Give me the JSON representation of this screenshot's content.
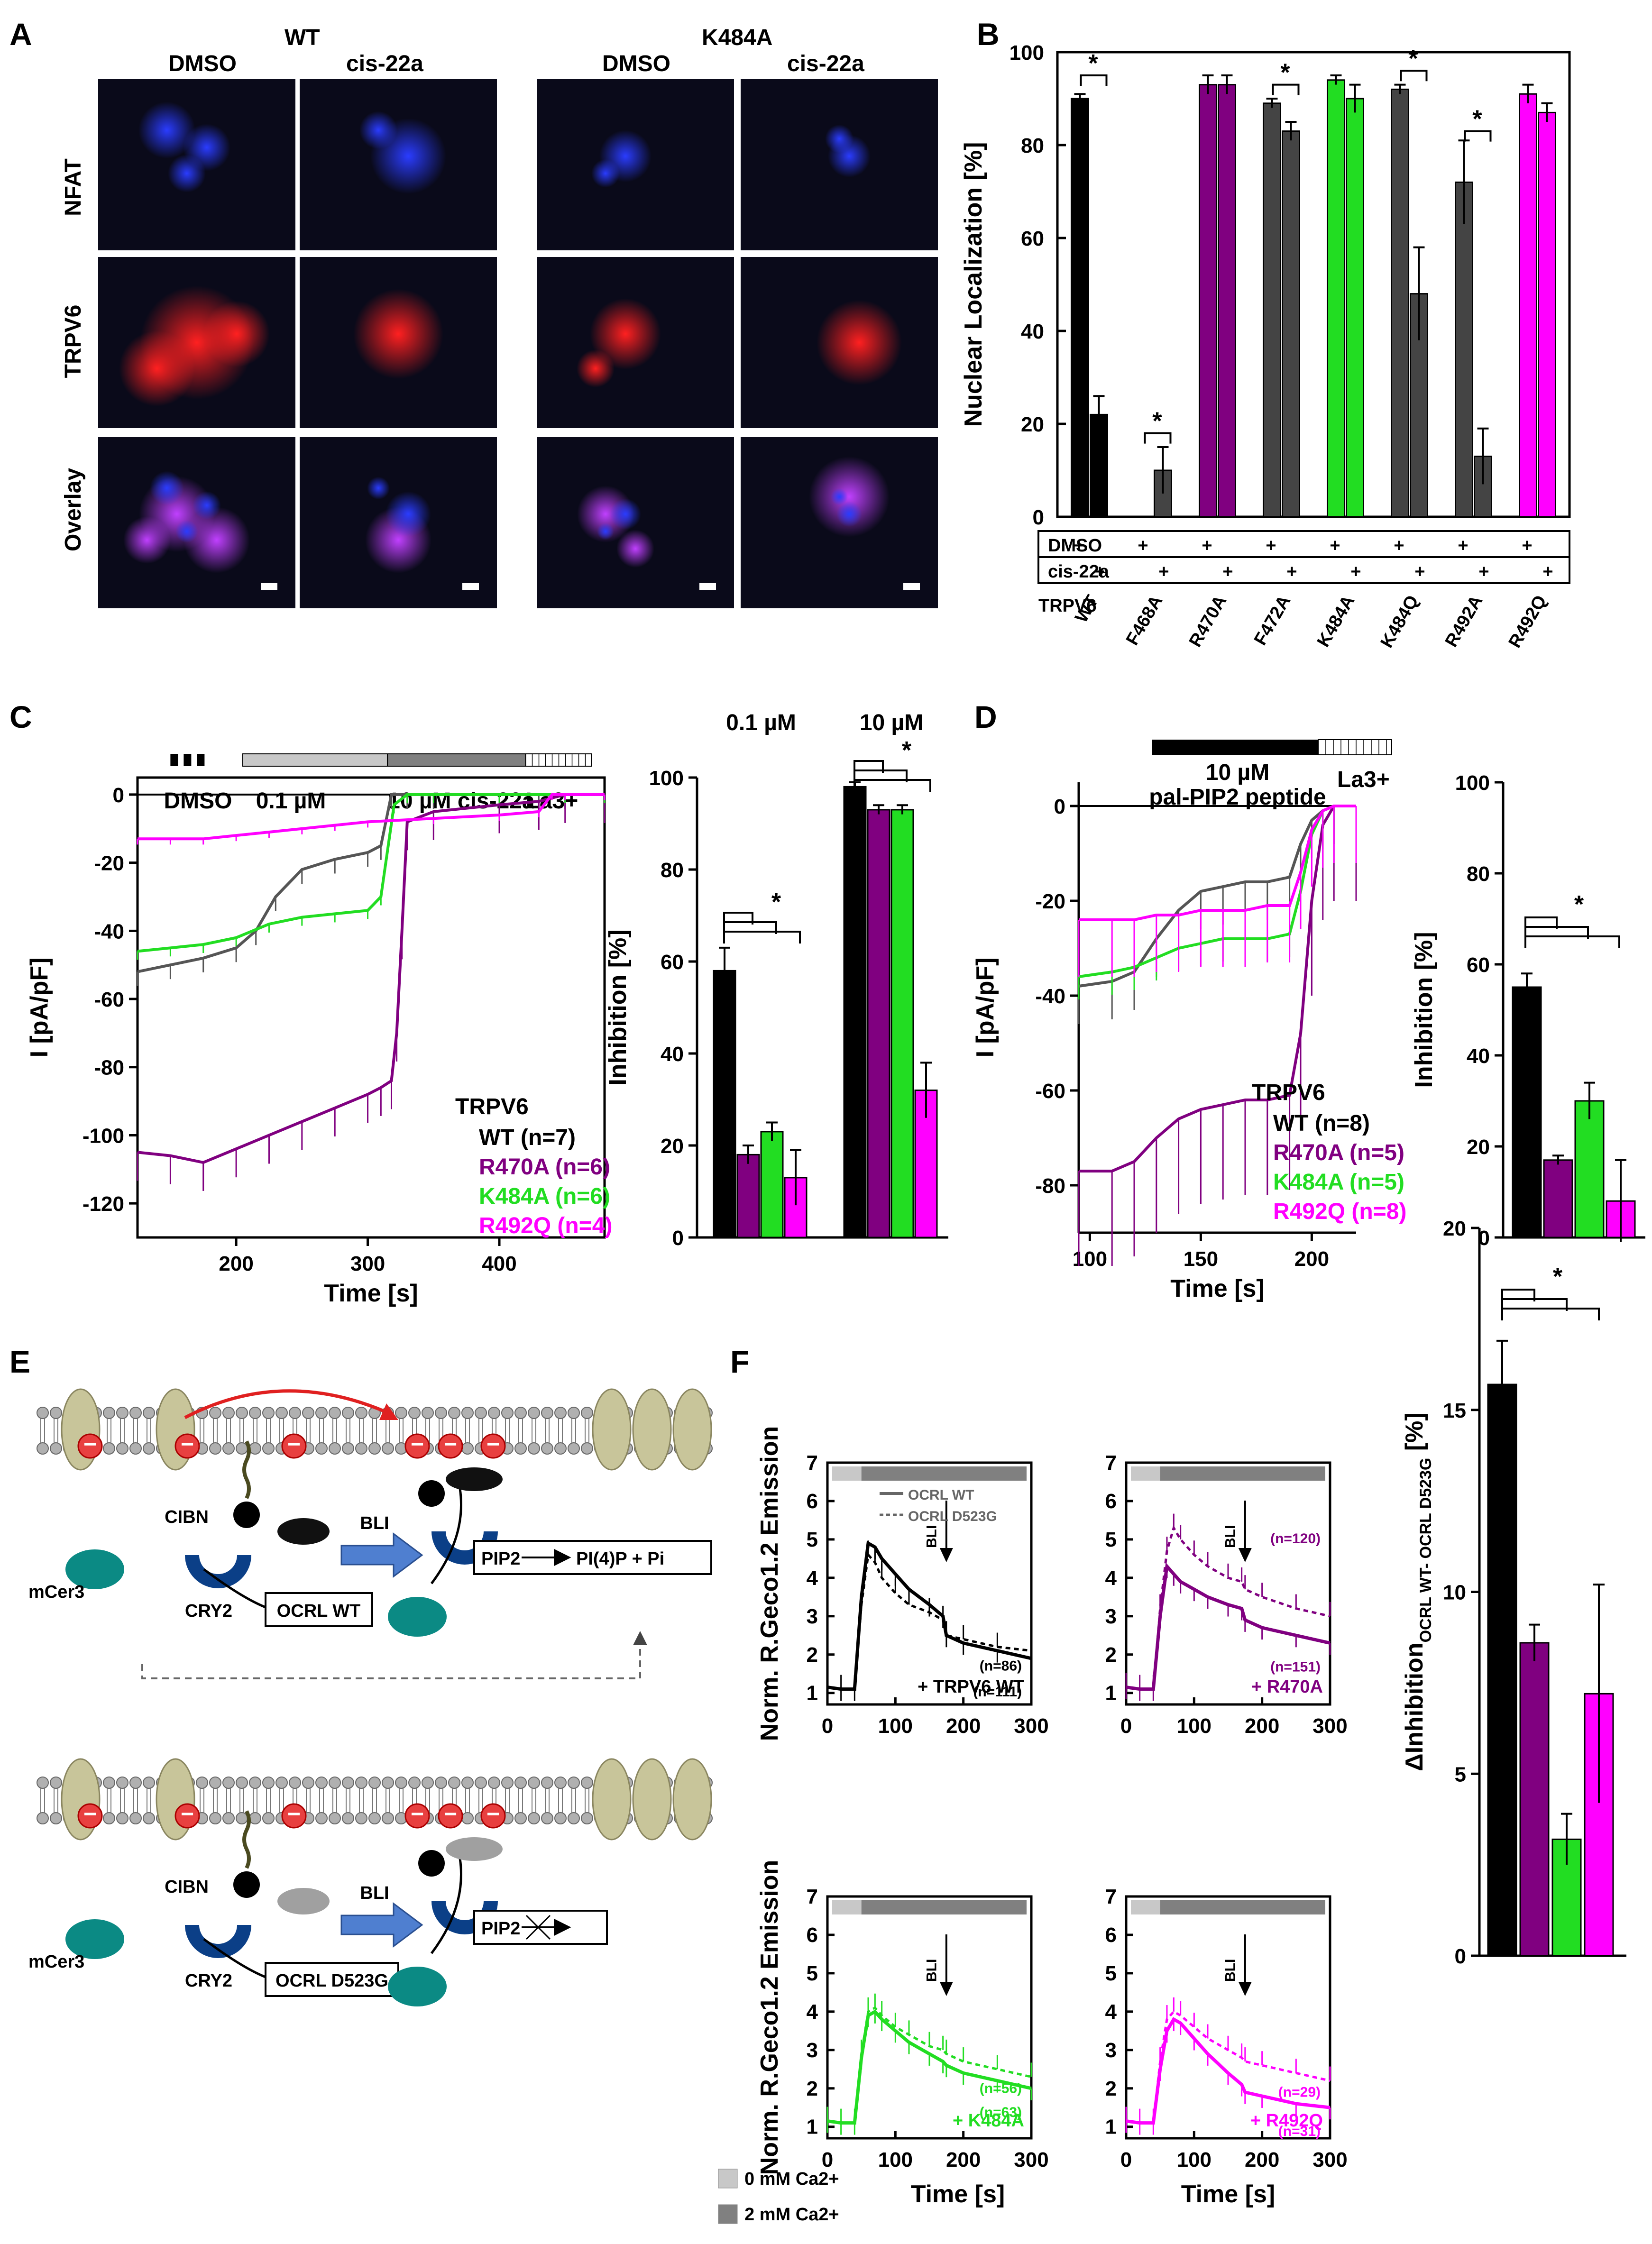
{
  "colors": {
    "wt": "#000000",
    "wt_trace": "#555555",
    "r470a": "#800080",
    "k484a": "#22dd22",
    "r492q": "#ff00ff",
    "grey": "#444444"
  },
  "panelA": {
    "panel_label": "A",
    "group_wt": "WT",
    "group_mut": "K484A",
    "col_dmso": "DMSO",
    "col_cis": "cis-22a",
    "rows": [
      "NFAT",
      "TRPV6",
      "Overlay"
    ]
  },
  "chart_data": [
    {
      "id": "B",
      "type": "bar",
      "panel_label": "B",
      "ylabel": "Nuclear Localization [%]",
      "ylim": [
        0,
        100
      ],
      "yticks": [
        0,
        20,
        40,
        60,
        80,
        100
      ],
      "row_dmso": "DMSO",
      "row_cis": "cis-22a",
      "row_trpv6": "TRPV6",
      "plus": "+",
      "significance": "*",
      "categories": [
        "WT",
        "F468A",
        "R470A",
        "F472A",
        "K484A",
        "K484Q",
        "R492A",
        "R492Q"
      ],
      "series": [
        {
          "name": "DMSO",
          "values": [
            90,
            0,
            93,
            89,
            94,
            92,
            72,
            91
          ],
          "errors": [
            1,
            0,
            2,
            1,
            1,
            1,
            9,
            2
          ]
        },
        {
          "name": "cis-22a",
          "values": [
            22,
            10,
            93,
            83,
            90,
            48,
            13,
            87
          ],
          "errors": [
            4,
            5,
            2,
            2,
            3,
            10,
            6,
            2
          ]
        }
      ],
      "bar_colors": [
        "#000000",
        "#444444",
        "#800080",
        "#444444",
        "#22dd22",
        "#444444",
        "#444444",
        "#ff00ff"
      ]
    },
    {
      "id": "C-left",
      "type": "line",
      "panel_label": "C",
      "xlabel": "Time [s]",
      "ylabel": "I [pA/pF]",
      "xlim": [
        125,
        480
      ],
      "ylim": [
        -130,
        5
      ],
      "xticks": [
        200,
        300,
        400
      ],
      "yticks": [
        0,
        -20,
        -40,
        -60,
        -80,
        -100,
        -120
      ],
      "bar_labels": {
        "dmso": "DMSO",
        "low": "0.1 µM",
        "high": "10 µM cis-22a",
        "la": "La3+"
      },
      "legend_title": "TRPV6",
      "series": [
        {
          "name": "WT (n=7)",
          "x": [
            125,
            150,
            175,
            200,
            215,
            230,
            250,
            275,
            300,
            310,
            318,
            330,
            350,
            400,
            430,
            450,
            480
          ],
          "y": [
            -52,
            -50,
            -48,
            -45,
            -40,
            -30,
            -22,
            -19,
            -17,
            -15,
            0,
            0,
            0,
            0,
            0,
            0,
            0
          ]
        },
        {
          "name": "R470A (n=6)",
          "x": [
            125,
            150,
            175,
            200,
            225,
            250,
            275,
            300,
            310,
            318,
            322,
            326,
            330,
            350,
            400,
            430,
            450,
            480
          ],
          "y": [
            -105,
            -106,
            -108,
            -104,
            -100,
            -96,
            -92,
            -88,
            -86,
            -84,
            -70,
            -40,
            -8,
            -5,
            -3,
            -2,
            0,
            0
          ]
        },
        {
          "name": "K484A (n=6)",
          "x": [
            125,
            150,
            175,
            200,
            225,
            250,
            275,
            300,
            310,
            320,
            330,
            350,
            400,
            450,
            480
          ],
          "y": [
            -46,
            -45,
            -44,
            -42,
            -38,
            -36,
            -35,
            -34,
            -30,
            -3,
            0,
            0,
            0,
            0,
            0
          ]
        },
        {
          "name": "R492Q (n=4)",
          "x": [
            125,
            150,
            175,
            200,
            225,
            250,
            275,
            300,
            350,
            400,
            430,
            440,
            450,
            480
          ],
          "y": [
            -13,
            -13,
            -13,
            -12,
            -11,
            -10,
            -9,
            -8,
            -7,
            -6,
            -5,
            0,
            0,
            0
          ]
        }
      ]
    },
    {
      "id": "C-right",
      "type": "bar",
      "ylabel": "Inhibition [%]",
      "ylim": [
        0,
        100
      ],
      "yticks": [
        0,
        20,
        40,
        60,
        80,
        100
      ],
      "groups": [
        "0.1 µM",
        "10 µM"
      ],
      "significance": "*",
      "series": [
        {
          "name": "WT",
          "values": [
            58,
            98
          ],
          "errors": [
            5,
            1
          ]
        },
        {
          "name": "R470A",
          "values": [
            18,
            93
          ],
          "errors": [
            2,
            1
          ]
        },
        {
          "name": "K484A",
          "values": [
            23,
            93
          ],
          "errors": [
            2,
            1
          ]
        },
        {
          "name": "R492Q",
          "values": [
            13,
            32
          ],
          "errors": [
            6,
            6
          ]
        }
      ]
    },
    {
      "id": "D-left",
      "type": "line",
      "panel_label": "D",
      "xlabel": "Time [s]",
      "ylabel": "I [pA/pF]",
      "xlim": [
        95,
        220
      ],
      "ylim": [
        -90,
        5
      ],
      "xticks": [
        100,
        150,
        200
      ],
      "yticks": [
        0,
        -20,
        -40,
        -60,
        -80
      ],
      "bar_labels": {
        "peptide_1": "10 µM",
        "peptide_2": "pal-PIP2 peptide",
        "la": "La3+"
      },
      "legend_title": "TRPV6",
      "series": [
        {
          "name": "WT (n=8)",
          "x": [
            95,
            110,
            120,
            130,
            140,
            150,
            160,
            170,
            180,
            190,
            195,
            200,
            205,
            210,
            220
          ],
          "y": [
            -38,
            -37,
            -35,
            -28,
            -22,
            -18,
            -17,
            -16,
            -16,
            -15,
            -8,
            -3,
            -1,
            0,
            0
          ]
        },
        {
          "name": "R470A (n=5)",
          "x": [
            95,
            110,
            120,
            130,
            140,
            150,
            160,
            170,
            180,
            190,
            195,
            200,
            205,
            210,
            220
          ],
          "y": [
            -77,
            -77,
            -75,
            -70,
            -66,
            -64,
            -63,
            -62,
            -62,
            -61,
            -48,
            -20,
            -4,
            0,
            0
          ]
        },
        {
          "name": "K484A (n=5)",
          "x": [
            95,
            110,
            120,
            130,
            140,
            150,
            160,
            170,
            180,
            190,
            195,
            200,
            205,
            210,
            220
          ],
          "y": [
            -36,
            -35,
            -34,
            -32,
            -30,
            -29,
            -28,
            -28,
            -28,
            -27,
            -18,
            -6,
            -1,
            0,
            0
          ]
        },
        {
          "name": "R492Q (n=8)",
          "x": [
            95,
            110,
            120,
            130,
            140,
            150,
            160,
            170,
            180,
            190,
            195,
            200,
            205,
            210,
            220
          ],
          "y": [
            -24,
            -24,
            -24,
            -23,
            -23,
            -22,
            -22,
            -22,
            -21,
            -21,
            -14,
            -5,
            -1,
            0,
            0
          ]
        }
      ]
    },
    {
      "id": "D-right",
      "type": "bar",
      "ylabel": "Inhibition [%]",
      "ylim": [
        0,
        100
      ],
      "yticks": [
        0,
        20,
        40,
        60,
        80,
        100
      ],
      "significance": "*",
      "series": [
        {
          "name": "WT",
          "values": [
            55
          ],
          "errors": [
            3
          ]
        },
        {
          "name": "R470A",
          "values": [
            17
          ],
          "errors": [
            1
          ]
        },
        {
          "name": "K484A",
          "values": [
            30
          ],
          "errors": [
            4
          ]
        },
        {
          "name": "R492Q",
          "values": [
            8
          ],
          "errors": [
            9
          ]
        }
      ]
    },
    {
      "id": "F-traces",
      "type": "line",
      "panel_label": "F",
      "xlabel": "Time [s]",
      "ylabel": "Norm. R.Geco1.2 Emission",
      "xlim": [
        0,
        300
      ],
      "ylim": [
        0.7,
        7
      ],
      "xticks": [
        0,
        100,
        200,
        300
      ],
      "yticks": [
        1,
        2,
        3,
        4,
        5,
        6,
        7
      ],
      "legend": [
        "OCRL WT",
        "OCRL D523G"
      ],
      "arrow_label": "BLI",
      "ca_legend": [
        "0 mM Ca2+",
        "2 mM Ca2+"
      ],
      "panels": [
        {
          "tag": "+ TRPV6 WT",
          "n_wt": "(n=111)",
          "n_mut": "(n=86)",
          "x": [
            0,
            20,
            40,
            50,
            60,
            70,
            80,
            100,
            120,
            150,
            170,
            175,
            200,
            250,
            300
          ],
          "wt": [
            1.15,
            1.1,
            1.1,
            3.5,
            4.9,
            4.8,
            4.5,
            4.1,
            3.7,
            3.3,
            3.0,
            2.5,
            2.3,
            2.1,
            1.9
          ],
          "mut": [
            1.15,
            1.1,
            1.1,
            3.3,
            4.6,
            4.4,
            4.0,
            3.6,
            3.3,
            3.1,
            2.9,
            2.5,
            2.4,
            2.2,
            2.1
          ]
        },
        {
          "tag": "+ R470A",
          "n_wt": "(n=151)",
          "n_mut": "(n=120)",
          "x": [
            0,
            20,
            40,
            50,
            60,
            70,
            80,
            100,
            120,
            150,
            170,
            175,
            200,
            250,
            300
          ],
          "wt": [
            1.15,
            1.1,
            1.1,
            3.0,
            4.3,
            4.1,
            3.9,
            3.7,
            3.5,
            3.3,
            3.2,
            2.9,
            2.7,
            2.5,
            2.3
          ],
          "mut": [
            1.15,
            1.1,
            1.1,
            3.2,
            4.7,
            5.3,
            5.0,
            4.6,
            4.3,
            4.0,
            3.9,
            3.7,
            3.5,
            3.2,
            3.0
          ]
        },
        {
          "tag": "+ K484A",
          "n_wt": "(n=63)",
          "n_mut": "(n=56)",
          "x": [
            0,
            20,
            40,
            50,
            60,
            70,
            80,
            100,
            120,
            150,
            170,
            175,
            200,
            250,
            300
          ],
          "wt": [
            1.15,
            1.1,
            1.1,
            2.8,
            3.9,
            4.0,
            3.8,
            3.5,
            3.2,
            2.9,
            2.7,
            2.6,
            2.4,
            2.2,
            2.0
          ],
          "mut": [
            1.15,
            1.1,
            1.1,
            2.9,
            4.0,
            4.1,
            3.9,
            3.6,
            3.4,
            3.1,
            3.0,
            2.9,
            2.7,
            2.5,
            2.3
          ]
        },
        {
          "tag": "+ R492Q",
          "n_wt": "(n=31)",
          "n_mut": "(n=29)",
          "x": [
            0,
            20,
            40,
            50,
            60,
            70,
            80,
            100,
            120,
            150,
            170,
            175,
            200,
            250,
            300
          ],
          "wt": [
            1.15,
            1.1,
            1.1,
            2.5,
            3.5,
            3.8,
            3.7,
            3.3,
            2.9,
            2.4,
            2.1,
            1.9,
            1.8,
            1.6,
            1.5
          ],
          "mut": [
            1.15,
            1.1,
            1.1,
            2.7,
            3.8,
            4.0,
            3.9,
            3.6,
            3.3,
            3.0,
            2.8,
            2.7,
            2.6,
            2.4,
            2.2
          ]
        }
      ]
    },
    {
      "id": "F-bar",
      "type": "bar",
      "ylabel": "ΔInhibition",
      "ylabel_sub": "OCRL WT- OCRL D523G",
      "ylabel_unit": "[%]",
      "ylim": [
        0,
        20
      ],
      "yticks": [
        0,
        5,
        10,
        15,
        20
      ],
      "significance": "*",
      "series": [
        {
          "name": "WT",
          "values": [
            15.7
          ],
          "errors": [
            1.2
          ]
        },
        {
          "name": "R470A",
          "values": [
            8.6
          ],
          "errors": [
            0.5
          ]
        },
        {
          "name": "K484A",
          "values": [
            3.2
          ],
          "errors": [
            0.7
          ]
        },
        {
          "name": "R492Q",
          "values": [
            7.2
          ],
          "errors": [
            3.0
          ]
        }
      ]
    }
  ],
  "panelE": {
    "panel_label": "E",
    "cibn": "CIBN",
    "mcer3": "mCer3",
    "cry2": "CRY2",
    "bli": "BLI",
    "ocrl_wt": "OCRL WT",
    "ocrl_mut": "OCRL D523G",
    "pip2": "PIP2",
    "products": "PI(4)P + Pi"
  }
}
